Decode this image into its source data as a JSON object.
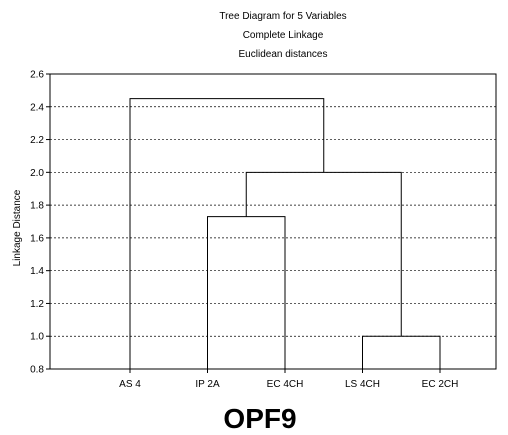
{
  "chart_data": {
    "type": "dendrogram",
    "title": [
      "Tree Diagram for 5 Variables",
      "Complete Linkage",
      "Euclidean distances"
    ],
    "ylabel": "Linkage Distance",
    "xlabel": "",
    "ylim": [
      0.8,
      2.6
    ],
    "yticks": [
      0.8,
      1.0,
      1.2,
      1.4,
      1.6,
      1.8,
      2.0,
      2.2,
      2.4,
      2.6
    ],
    "leaves": [
      "AS 4",
      "IP 2A",
      "EC 4CH",
      "LS 4CH",
      "EC 2CH"
    ],
    "merges": [
      {
        "left": "LS 4CH",
        "right": "EC 2CH",
        "height": 1.0
      },
      {
        "left": "IP 2A",
        "right": "EC 4CH",
        "height": 1.73
      },
      {
        "left": [
          "IP 2A",
          "EC 4CH"
        ],
        "right": [
          "LS 4CH",
          "EC 2CH"
        ],
        "height": 2.0
      },
      {
        "left": "AS 4",
        "right": [
          "IP 2A",
          "EC 4CH",
          "LS 4CH",
          "EC 2CH"
        ],
        "height": 2.45
      }
    ],
    "grid": true,
    "grid_style": "dotted"
  },
  "caption": "OPF9"
}
